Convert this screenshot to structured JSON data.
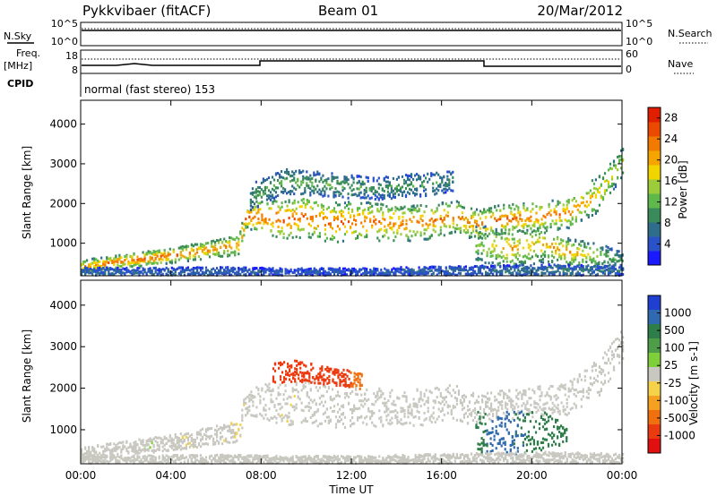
{
  "header": {
    "station": "Pykkvibaer (fitACF)",
    "beam": "Beam 01",
    "date": "20/Mar/2012"
  },
  "strips": {
    "nsky_label": "N.Sky",
    "nsky_ticks": [
      "10^5",
      "10^0"
    ],
    "nsearch_label": "N.Search",
    "nsearch_ticks": [
      "10^5",
      "10^0"
    ],
    "freq_label": "Freq.",
    "freq_unit": "[MHz]",
    "freq_ticks": [
      "18",
      "8"
    ],
    "nave_label": "Nave",
    "nave_ticks": [
      "60",
      "0"
    ],
    "cpid_label": "CPID",
    "cpid_text": "normal (fast stereo) 153"
  },
  "chart_data": [
    {
      "type": "heatmap",
      "title": "",
      "xlabel": "Time UT",
      "ylabel": "Slant Range [km]",
      "xlim": [
        "00:00",
        "24:00"
      ],
      "ylim": [
        180,
        4600
      ],
      "x_ticks": [
        "00:00",
        "04:00",
        "08:00",
        "12:00",
        "16:00",
        "20:00",
        "00:00"
      ],
      "y_ticks": [
        1000,
        2000,
        3000,
        4000
      ],
      "colorbar": {
        "label": "Power [dB]",
        "ticks": [
          4,
          8,
          12,
          16,
          20,
          24,
          28
        ],
        "range": [
          0,
          30
        ],
        "colors": [
          "#1a1aff",
          "#2a52c8",
          "#2e6e8a",
          "#3a8a5a",
          "#5fb84a",
          "#9ccc3a",
          "#f2d500",
          "#f6a500",
          "#f27a00",
          "#ea4a00",
          "#e01e00"
        ]
      },
      "bands": [
        {
          "name": "main",
          "x": [
            0.0,
            1.5,
            3.0,
            4.5,
            6.0,
            7.0,
            7.3,
            8.0,
            9.0,
            10.0,
            11.0,
            12.5,
            14.0,
            15.5,
            16.5,
            17.5,
            18.5,
            20.0,
            21.5,
            23.0,
            24.0
          ],
          "y": [
            420,
            560,
            650,
            760,
            900,
            1000,
            1700,
            1720,
            1620,
            1700,
            1550,
            1600,
            1520,
            1580,
            1700,
            1500,
            1620,
            1700,
            1760,
            2300,
            3100
          ],
          "width": [
            180,
            160,
            180,
            200,
            220,
            260,
            300,
            420,
            500,
            520,
            500,
            480,
            460,
            440,
            420,
            380,
            360,
            360,
            380,
            460,
            380
          ],
          "power": [
            22,
            26,
            26,
            25,
            24,
            24,
            26,
            27,
            27,
            26,
            26,
            25,
            24,
            25,
            24,
            25,
            26,
            25,
            24,
            20,
            16
          ]
        },
        {
          "name": "upper",
          "x": [
            7.5,
            9.0,
            11.0,
            13.0,
            15.0,
            16.5
          ],
          "y": [
            2200,
            2600,
            2500,
            2400,
            2500,
            2600
          ],
          "width": [
            350,
            320,
            300,
            280,
            300,
            260
          ],
          "power": [
            10,
            12,
            12,
            10,
            10,
            9
          ]
        },
        {
          "name": "low",
          "x": [
            17.5,
            19.0,
            20.5,
            21.5,
            23.0,
            24.0
          ],
          "y": [
            1000,
            900,
            1000,
            820,
            700,
            620
          ],
          "width": [
            500,
            500,
            450,
            350,
            300,
            200
          ],
          "power": [
            14,
            22,
            20,
            24,
            14,
            10
          ]
        },
        {
          "name": "near",
          "x": [
            0.0,
            3.0,
            6.0,
            9.0,
            12.0,
            15.0,
            18.0,
            21.0,
            24.0
          ],
          "y": [
            300,
            290,
            310,
            300,
            300,
            320,
            330,
            340,
            330
          ],
          "width": [
            120,
            120,
            120,
            100,
            100,
            120,
            140,
            160,
            120
          ],
          "power": [
            6,
            5,
            6,
            4,
            4,
            5,
            6,
            8,
            6
          ]
        }
      ]
    },
    {
      "type": "heatmap",
      "title": "",
      "xlabel": "Time UT",
      "ylabel": "Slant Range [km]",
      "xlim": [
        "00:00",
        "24:00"
      ],
      "ylim": [
        180,
        4600
      ],
      "x_ticks": [
        "00:00",
        "04:00",
        "08:00",
        "12:00",
        "16:00",
        "20:00",
        "00:00"
      ],
      "y_ticks": [
        1000,
        2000,
        3000,
        4000
      ],
      "colorbar": {
        "label": "Velocity [m s-1]",
        "ticks": [
          "1000",
          "500",
          "100",
          "25",
          "-25",
          "-100",
          "-500",
          "-1000"
        ],
        "colors": [
          "#1f3fd0",
          "#2f6ab0",
          "#2e7e4a",
          "#4e9d48",
          "#7fcf3a",
          "#c8c8c0",
          "#f5d24a",
          "#f5a020",
          "#f07010",
          "#ea3a10",
          "#e01010"
        ]
      },
      "bands": [
        {
          "name": "main",
          "x": [
            0.0,
            1.5,
            3.0,
            4.5,
            6.0,
            7.0,
            7.3,
            8.0,
            9.0,
            10.0,
            11.0,
            12.5,
            14.0,
            15.5,
            16.5,
            17.5,
            18.5,
            20.0,
            21.5,
            23.0,
            24.0
          ],
          "y": [
            420,
            560,
            650,
            760,
            900,
            1000,
            1700,
            1720,
            1620,
            1700,
            1550,
            1600,
            1520,
            1580,
            1700,
            1500,
            1620,
            1700,
            1760,
            2300,
            3100
          ],
          "width": [
            180,
            160,
            180,
            200,
            220,
            260,
            300,
            420,
            500,
            520,
            500,
            480,
            460,
            440,
            420,
            380,
            360,
            360,
            380,
            460,
            380
          ],
          "velocity": [
            0,
            0,
            10,
            -10,
            0,
            -30,
            0,
            0,
            -10,
            0,
            0,
            0,
            0,
            0,
            0,
            0,
            0,
            0,
            0,
            0,
            0
          ]
        },
        {
          "name": "upper",
          "x": [
            8.5,
            9.5,
            10.5,
            11.5,
            12.5
          ],
          "y": [
            2400,
            2450,
            2350,
            2300,
            2200
          ],
          "width": [
            250,
            260,
            240,
            220,
            200
          ],
          "velocity": [
            -600,
            -550,
            -500,
            -400,
            -150
          ]
        },
        {
          "name": "low",
          "x": [
            17.5,
            18.5,
            19.5,
            20.5,
            21.5
          ],
          "y": [
            1000,
            950,
            950,
            1000,
            900
          ],
          "width": [
            500,
            520,
            520,
            450,
            300
          ],
          "velocity": [
            250,
            350,
            300,
            250,
            200
          ]
        },
        {
          "name": "near",
          "x": [
            0.0,
            3.0,
            6.0,
            9.0,
            12.0,
            15.0,
            18.0,
            21.0,
            24.0
          ],
          "y": [
            300,
            290,
            310,
            300,
            300,
            320,
            330,
            340,
            330
          ],
          "width": [
            120,
            120,
            120,
            100,
            100,
            120,
            140,
            160,
            120
          ],
          "velocity": [
            0,
            0,
            0,
            0,
            0,
            0,
            0,
            0,
            0
          ]
        }
      ]
    }
  ]
}
